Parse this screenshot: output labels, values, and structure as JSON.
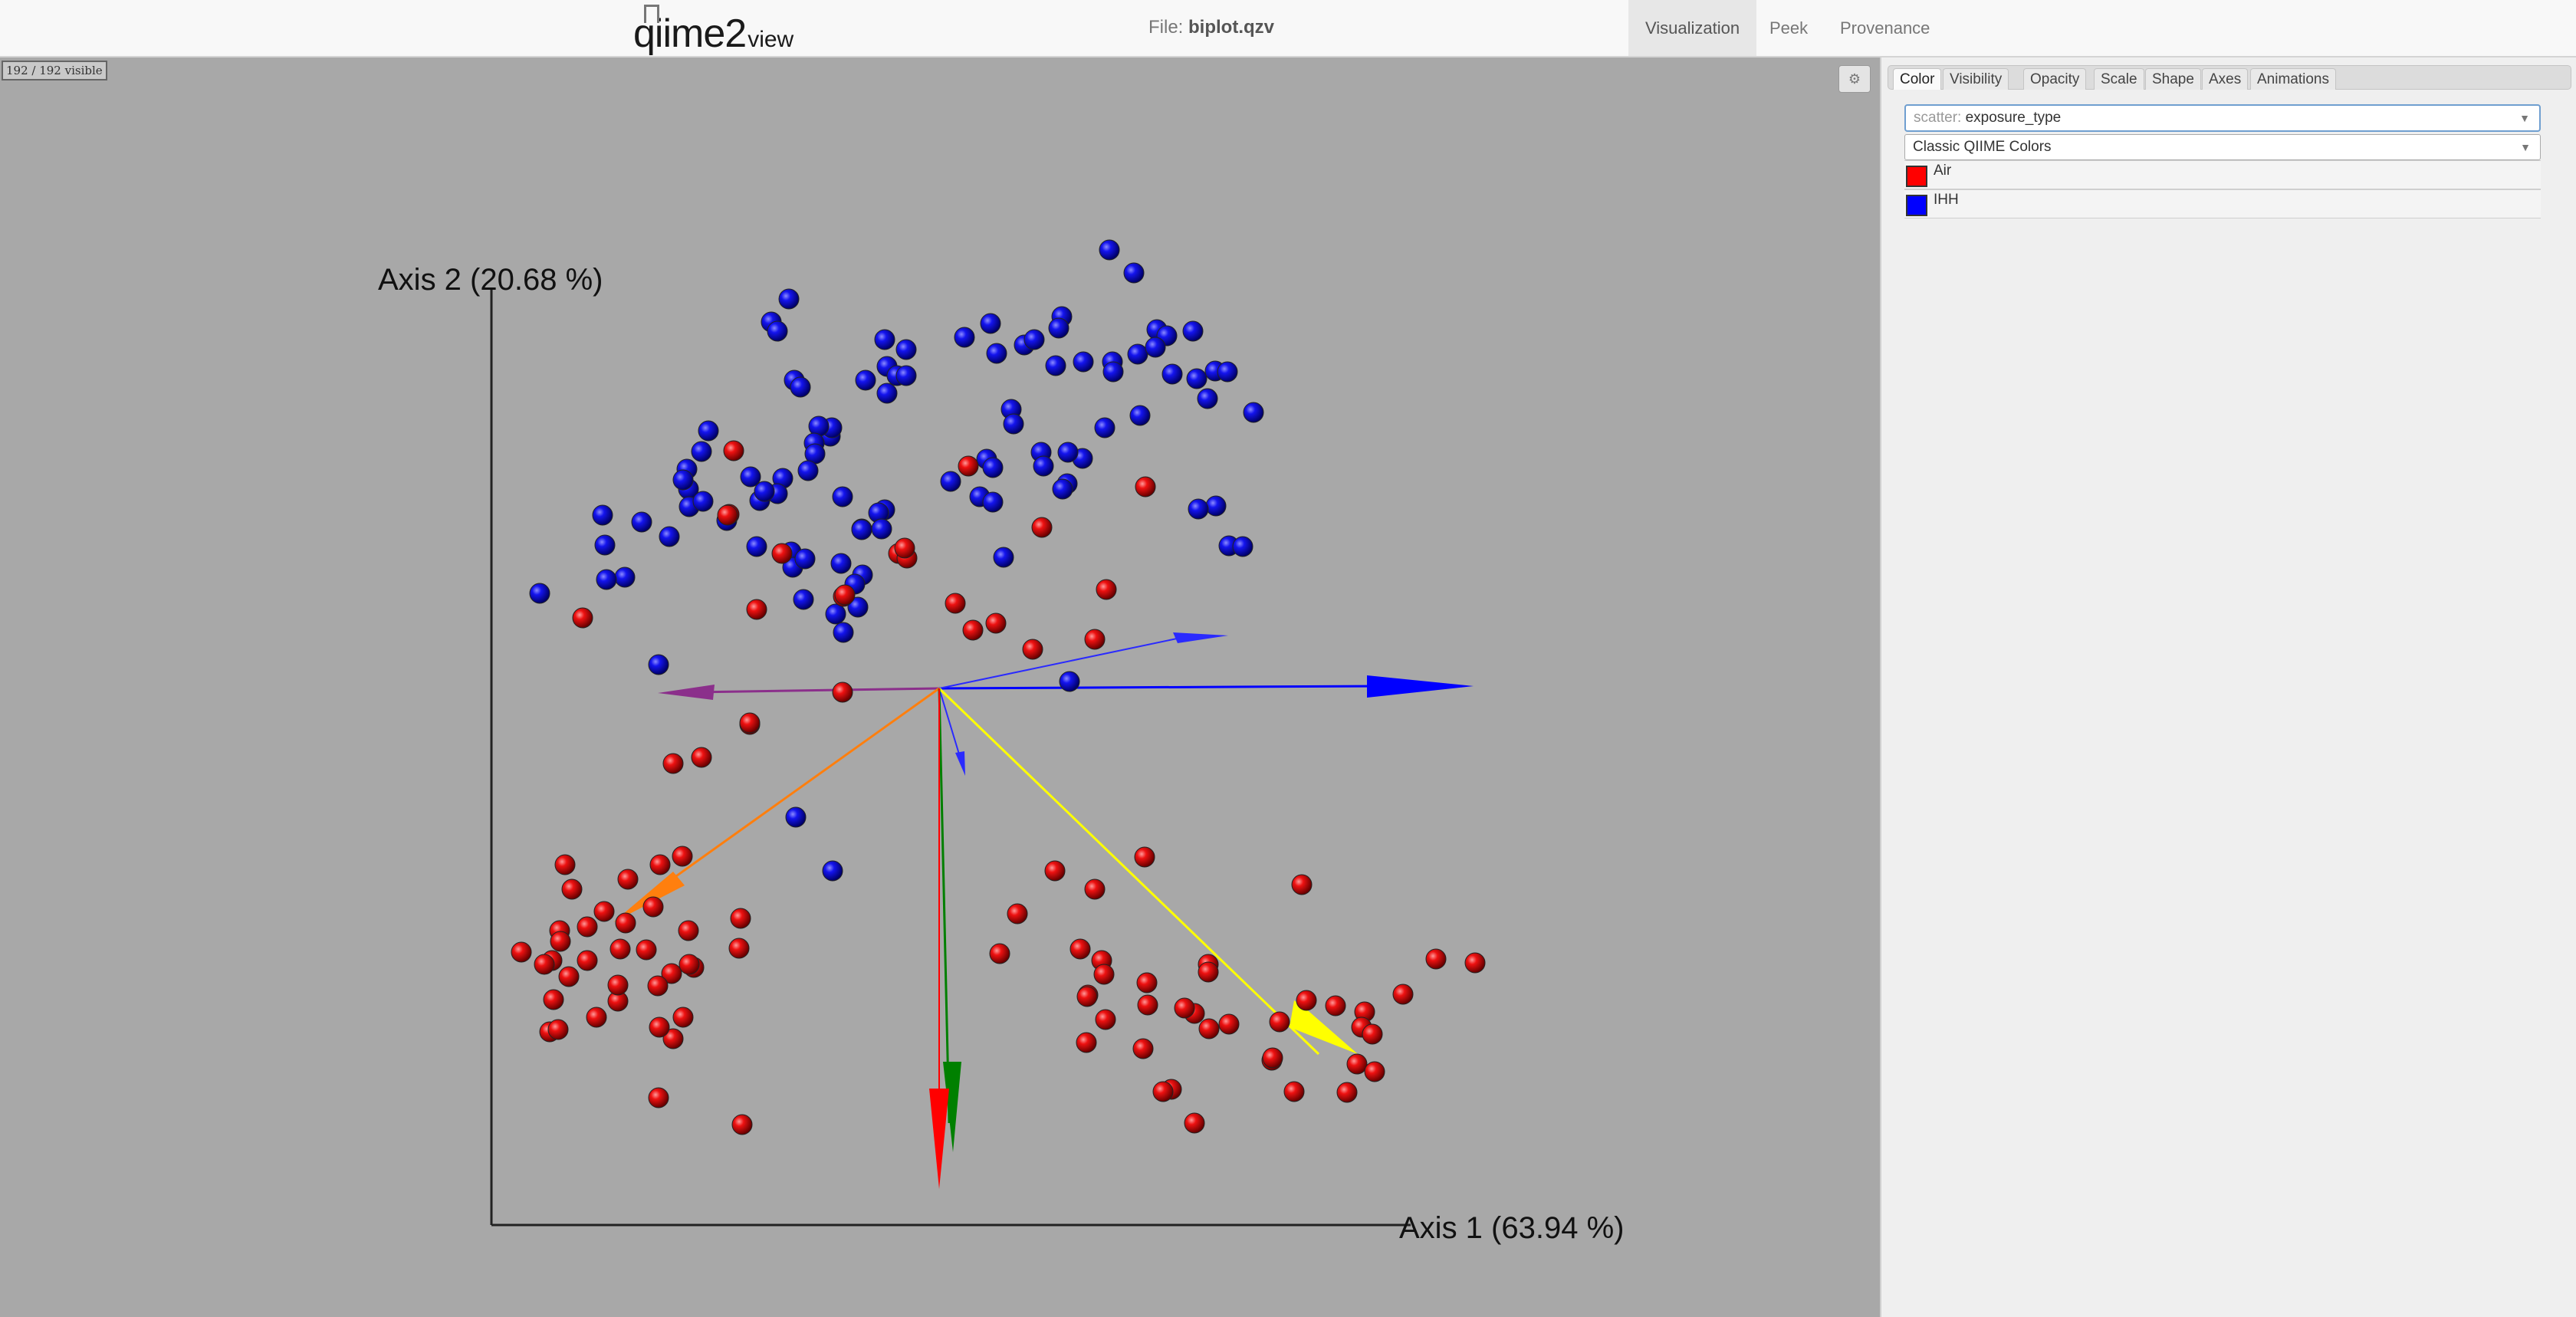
{
  "app": {
    "logo_main": "qiime2",
    "logo_suffix": "view",
    "file_prefix": "File:",
    "file_name": "biplot.qzv",
    "nav_tabs": [
      "Visualization",
      "Peek",
      "Provenance"
    ],
    "active_nav": "Visualization"
  },
  "plot": {
    "visible_count": "192 / 192 visible",
    "settings_icon": "gear-icon",
    "axis_x_label": "Axis 1 (63.94 %)",
    "axis_y_label": "Axis 2 (20.68 %)",
    "background_color": "#a8a8a8"
  },
  "panel": {
    "tabs": [
      "Color",
      "Visibility",
      "Opacity",
      "Scale",
      "Shape",
      "Axes",
      "Animations"
    ],
    "active_tab": "Color",
    "scatter_prefix": "scatter:",
    "scatter_value": "exposure_type",
    "colormap_value": "Classic QIIME Colors",
    "legend": [
      {
        "label": "Air",
        "color": "#ff0000"
      },
      {
        "label": "IHH",
        "color": "#0000ff"
      }
    ]
  },
  "colors": {
    "arrow_purple": "#8b2f8b",
    "arrow_orange": "#ff7f0e",
    "arrow_yellow": "#ffff00",
    "arrow_green": "#008000",
    "arrow_red": "#ff0000",
    "arrow_blue": "#0000ff"
  }
}
